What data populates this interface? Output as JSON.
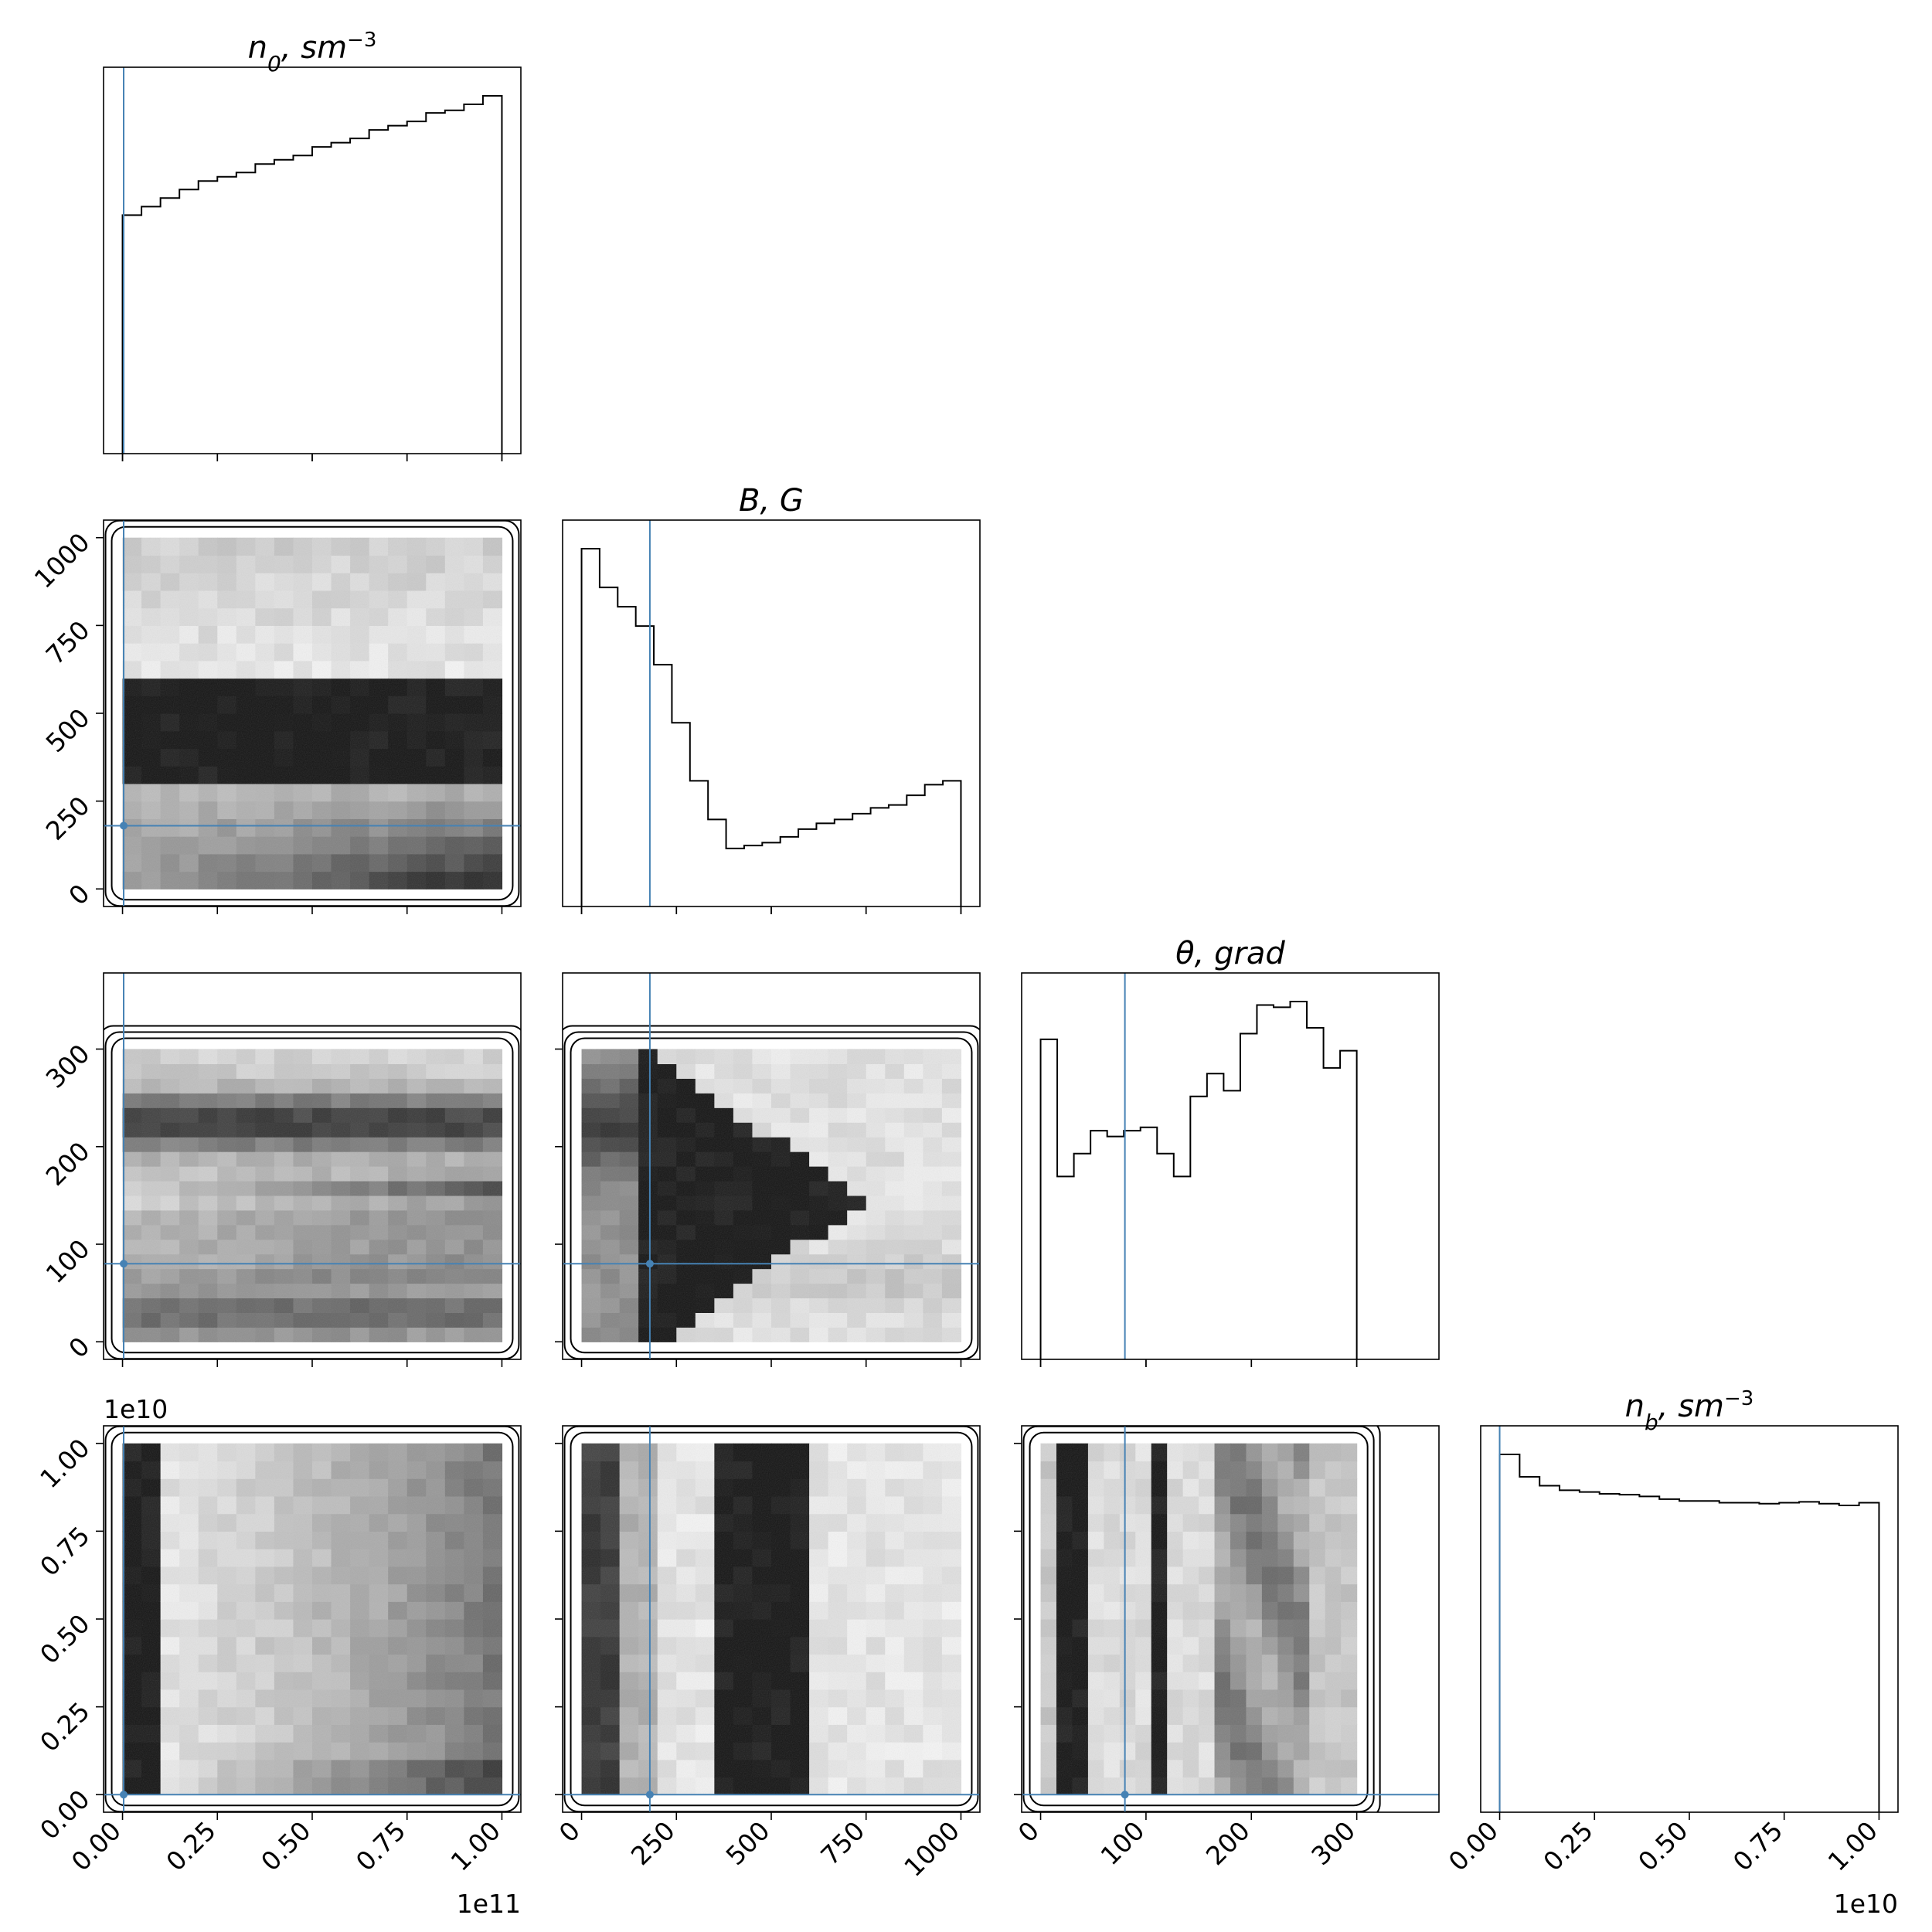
{
  "chart_data": {
    "type": "corner",
    "truth_color": "#4682b4",
    "parameters": [
      {
        "key": "n0",
        "title": "n_0, sm^{-3}",
        "title_base": "n",
        "title_sub": "0",
        "title_rest": ", sm",
        "title_sup": "−3",
        "range": [
          -5000000000.0,
          105000000000.0
        ],
        "ticks": [
          0,
          25000000000.0,
          50000000000.0,
          75000000000.0,
          100000000000.0
        ],
        "ticklabels": [
          "0.00",
          "0.25",
          "0.50",
          "0.75",
          "1.00"
        ],
        "offset": "1e11",
        "truth": 300000000.0
      },
      {
        "key": "B",
        "title": "B, G",
        "title_base": "B",
        "title_sub": "",
        "title_rest": ", G",
        "title_sup": "",
        "range": [
          -50,
          1050
        ],
        "ticks": [
          0,
          250,
          500,
          750,
          1000
        ],
        "ticklabels": [
          "0",
          "250",
          "500",
          "750",
          "1000"
        ],
        "offset": "",
        "truth": 180
      },
      {
        "key": "theta",
        "title": "θ, grad",
        "title_base": "θ",
        "title_sub": "",
        "title_rest": ", grad",
        "title_sup": "",
        "range": [
          -18,
          378
        ],
        "ticks": [
          0,
          100,
          200,
          300
        ],
        "ticklabels": [
          "0",
          "100",
          "200",
          "300"
        ],
        "offset": "",
        "truth": 80
      },
      {
        "key": "nb",
        "title": "n_b, sm^{-3}",
        "title_base": "n",
        "title_sub": "b",
        "title_rest": ", sm",
        "title_sup": "−3",
        "range": [
          -500000000.0,
          10500000000.0
        ],
        "ticks": [
          0,
          2500000000.0,
          5000000000.0,
          7500000000.0,
          10000000000.0
        ],
        "ticklabels": [
          "0.00",
          "0.25",
          "0.50",
          "0.75",
          "1.00"
        ],
        "offset": "1e10",
        "truth": 0.0
      }
    ],
    "histograms": [
      {
        "param": "n0",
        "values": [
          28,
          29,
          30,
          31,
          32,
          32.5,
          33,
          34,
          34.5,
          35,
          36,
          36.5,
          37,
          38,
          38.5,
          39,
          40,
          40.3,
          41,
          42
        ]
      },
      {
        "param": "B",
        "values": [
          37,
          33,
          31,
          29,
          25,
          19,
          13,
          9,
          6,
          6.3,
          6.6,
          7.2,
          8,
          8.6,
          9,
          9.6,
          10.2,
          10.5,
          11.5,
          12.6,
          13
        ]
      },
      {
        "param": "theta",
        "values": [
          28,
          16,
          18,
          20,
          19.5,
          20,
          20.3,
          18,
          16,
          23,
          25,
          23.5,
          28.5,
          31,
          30.8,
          31.3,
          29,
          25.5,
          27
        ]
      },
      {
        "param": "nb",
        "values": [
          40,
          37.5,
          36.5,
          36,
          35.8,
          35.6,
          35.5,
          35.3,
          35,
          34.8,
          34.8,
          34.6,
          34.6,
          34.5,
          34.6,
          34.7,
          34.5,
          34.3,
          34.6
        ]
      }
    ],
    "joint_plots": [
      {
        "x": "n0",
        "y": "B",
        "pattern": "B-low-and-high"
      },
      {
        "x": "n0",
        "y": "theta",
        "pattern": "theta-bands"
      },
      {
        "x": "B",
        "y": "theta",
        "pattern": "B-theta-horseshoe"
      },
      {
        "x": "n0",
        "y": "nb",
        "pattern": "n0-nb-gradient"
      },
      {
        "x": "B",
        "y": "nb",
        "pattern": "B-nb-columns"
      },
      {
        "x": "theta",
        "y": "nb",
        "pattern": "theta-nb-columns"
      }
    ]
  }
}
